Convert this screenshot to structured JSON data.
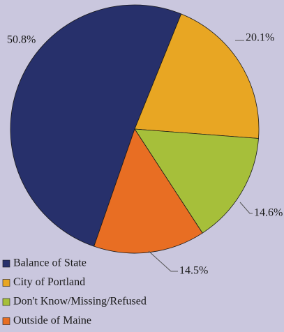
{
  "chart_data": {
    "type": "pie",
    "categories": [
      "Balance of State",
      "City of Portland",
      "Don't Know/Missing/Refused",
      "Outside of Maine"
    ],
    "values": [
      50.8,
      20.1,
      14.6,
      14.5
    ],
    "value_labels": [
      "50.8%",
      "20.1%",
      "14.6%",
      "14.5%"
    ],
    "colors": [
      "#27306b",
      "#e8a623",
      "#a6bf3a",
      "#e86e23"
    ],
    "legend": "bottom-left"
  }
}
